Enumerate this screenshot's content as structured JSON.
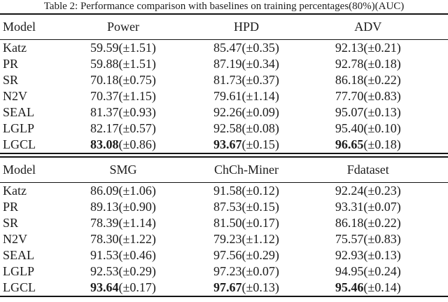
{
  "caption": "Table 2: Performance comparison with baselines on training percentages(80%)(AUC)",
  "colors": {
    "background": "#ffffff",
    "text": "#1c1c1c",
    "rule": "#141414"
  },
  "chart_data": {
    "type": "table",
    "title": "Table 2: Performance comparison with baselines on training percentages(80%)(AUC)",
    "sections": [
      {
        "headers": [
          "Model",
          "Power",
          "HPD",
          "ADV"
        ],
        "rows": [
          {
            "model": "Katz",
            "values": [
              {
                "v": "59.59",
                "s": "(±1.51)",
                "bold": false
              },
              {
                "v": "85.47",
                "s": "(±0.35)",
                "bold": false
              },
              {
                "v": "92.13",
                "s": "(±0.21)",
                "bold": false
              }
            ]
          },
          {
            "model": "PR",
            "values": [
              {
                "v": "59.88",
                "s": "(±1.51)",
                "bold": false
              },
              {
                "v": "87.19",
                "s": "(±0.34)",
                "bold": false
              },
              {
                "v": "92.78",
                "s": "(±0.18)",
                "bold": false
              }
            ]
          },
          {
            "model": "SR",
            "values": [
              {
                "v": "70.18",
                "s": "(±0.75)",
                "bold": false
              },
              {
                "v": "81.73",
                "s": "(±0.37)",
                "bold": false
              },
              {
                "v": "86.18",
                "s": "(±0.22)",
                "bold": false
              }
            ]
          },
          {
            "model": "N2V",
            "values": [
              {
                "v": "70.37",
                "s": "(±1.15)",
                "bold": false
              },
              {
                "v": "79.61",
                "s": "(±1.14)",
                "bold": false
              },
              {
                "v": "77.70",
                "s": "(±0.83)",
                "bold": false
              }
            ]
          },
          {
            "model": "SEAL",
            "values": [
              {
                "v": "81.37",
                "s": "(±0.93)",
                "bold": false
              },
              {
                "v": "92.26",
                "s": "(±0.09)",
                "bold": false
              },
              {
                "v": "95.07",
                "s": "(±0.13)",
                "bold": false
              }
            ]
          },
          {
            "model": "LGLP",
            "values": [
              {
                "v": "82.17",
                "s": "(±0.57)",
                "bold": false
              },
              {
                "v": "92.58",
                "s": "(±0.08)",
                "bold": false
              },
              {
                "v": "95.40",
                "s": "(±0.10)",
                "bold": false
              }
            ]
          },
          {
            "model": "LGCL",
            "values": [
              {
                "v": "83.08",
                "s": "(±0.86)",
                "bold": true
              },
              {
                "v": "93.67",
                "s": "(±0.15)",
                "bold": true
              },
              {
                "v": "96.65",
                "s": "(±0.18)",
                "bold": true
              }
            ]
          }
        ]
      },
      {
        "headers": [
          "Model",
          "SMG",
          "ChCh-Miner",
          "Fdataset"
        ],
        "rows": [
          {
            "model": "Katz",
            "values": [
              {
                "v": "86.09",
                "s": "(±1.06)",
                "bold": false
              },
              {
                "v": "91.58",
                "s": "(±0.12)",
                "bold": false
              },
              {
                "v": "92.24",
                "s": "(±0.23)",
                "bold": false
              }
            ]
          },
          {
            "model": "PR",
            "values": [
              {
                "v": "89.13",
                "s": "(±0.90)",
                "bold": false
              },
              {
                "v": "87.53",
                "s": "(±0.15)",
                "bold": false
              },
              {
                "v": "93.31",
                "s": "(±0.07)",
                "bold": false
              }
            ]
          },
          {
            "model": "SR",
            "values": [
              {
                "v": "78.39",
                "s": "(±1.14)",
                "bold": false
              },
              {
                "v": "81.50",
                "s": "(±0.17)",
                "bold": false
              },
              {
                "v": "86.18",
                "s": "(±0.22)",
                "bold": false
              }
            ]
          },
          {
            "model": "N2V",
            "values": [
              {
                "v": "78.30",
                "s": "(±1.22)",
                "bold": false
              },
              {
                "v": "79.23",
                "s": "(±1.12)",
                "bold": false
              },
              {
                "v": "75.57",
                "s": "(±0.83)",
                "bold": false
              }
            ]
          },
          {
            "model": "SEAL",
            "values": [
              {
                "v": "91.53",
                "s": "(±0.46)",
                "bold": false
              },
              {
                "v": "97.56",
                "s": "(±0.29)",
                "bold": false
              },
              {
                "v": "92.93",
                "s": "(±0.13)",
                "bold": false
              }
            ]
          },
          {
            "model": "LGLP",
            "values": [
              {
                "v": "92.53",
                "s": "(±0.29)",
                "bold": false
              },
              {
                "v": "97.23",
                "s": "(±0.07)",
                "bold": false
              },
              {
                "v": "94.95",
                "s": "(±0.24)",
                "bold": false
              }
            ]
          },
          {
            "model": "LGCL",
            "values": [
              {
                "v": "93.64",
                "s": "(±0.17)",
                "bold": true
              },
              {
                "v": "97.67",
                "s": "(±0.13)",
                "bold": true
              },
              {
                "v": "95.46",
                "s": "(±0.14)",
                "bold": true
              }
            ]
          }
        ]
      }
    ]
  }
}
